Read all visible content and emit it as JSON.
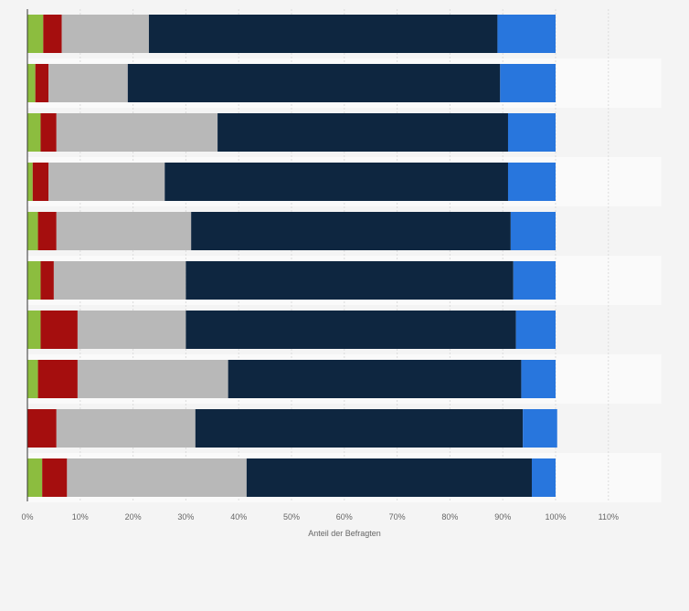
{
  "chart_data": {
    "type": "bar",
    "orientation": "horizontal",
    "stacked": true,
    "categories": [
      "",
      "",
      "",
      "",
      "",
      "",
      "",
      "",
      "",
      ""
    ],
    "series": [
      {
        "color": "#8cbd3f",
        "values": [
          3.0,
          1.5,
          2.5,
          1.0,
          2.0,
          2.5,
          2.5,
          2.0,
          0.0,
          2.8
        ]
      },
      {
        "color": "#a50e0e",
        "values": [
          3.5,
          2.5,
          3.0,
          3.0,
          3.5,
          2.5,
          7.0,
          7.5,
          5.5,
          4.7
        ]
      },
      {
        "color": "#b8b8b8",
        "values": [
          16.5,
          15.0,
          30.5,
          22.0,
          25.5,
          25.0,
          20.5,
          28.5,
          26.3,
          34.0
        ]
      },
      {
        "color": "#0e2640",
        "values": [
          66.0,
          70.5,
          55.0,
          65.0,
          60.5,
          62.0,
          62.5,
          55.5,
          62.0,
          54.0
        ]
      },
      {
        "color": "#2876dd",
        "values": [
          11.0,
          10.5,
          9.0,
          9.0,
          8.5,
          8.0,
          7.5,
          6.5,
          6.5,
          4.5
        ]
      }
    ],
    "xlim": [
      0,
      120
    ],
    "xticks": [
      0,
      10,
      20,
      30,
      40,
      50,
      60,
      70,
      80,
      90,
      100,
      110
    ],
    "xtick_labels": [
      "0%",
      "10%",
      "20%",
      "30%",
      "40%",
      "50%",
      "60%",
      "70%",
      "80%",
      "90%",
      "100%",
      "110%"
    ],
    "xlabel": "Anteil der Befragten",
    "grid": true,
    "legend": "none"
  }
}
